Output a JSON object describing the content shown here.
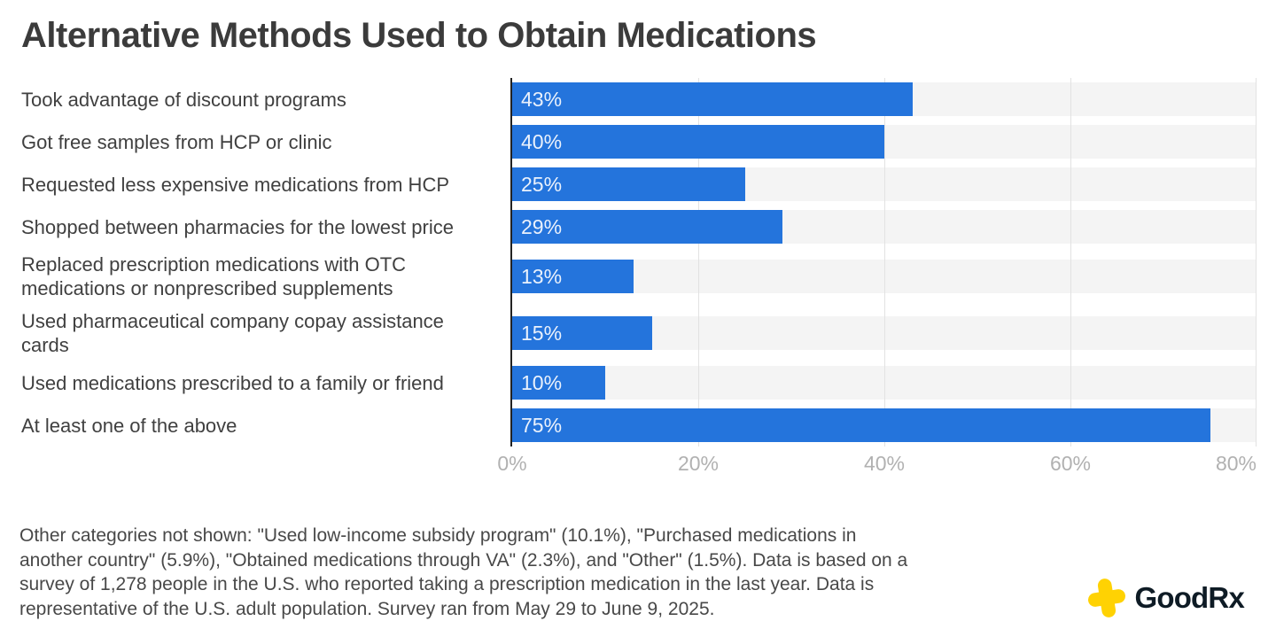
{
  "title": "Alternative Methods Used to Obtain Medications",
  "chart_data": {
    "type": "bar",
    "orientation": "horizontal",
    "title": "Alternative Methods Used to Obtain Medications",
    "xlabel": "",
    "ylabel": "",
    "xlim": [
      0,
      80
    ],
    "xmax": 80,
    "grid": "vertical",
    "x_ticks": [
      "0%",
      "20%",
      "40%",
      "60%",
      "80%"
    ],
    "bar_color": "#2474dc",
    "track_color": "#f4f4f4",
    "rows": [
      {
        "label": "Took advantage of discount programs",
        "value": 43,
        "display": "43%"
      },
      {
        "label": "Got free samples from HCP or clinic",
        "value": 40,
        "display": "40%"
      },
      {
        "label": "Requested less expensive medications from HCP",
        "value": 25,
        "display": "25%"
      },
      {
        "label": "Shopped between pharmacies for the lowest price",
        "value": 29,
        "display": "29%"
      },
      {
        "label": "Replaced prescription medications with OTC\nmedications or nonprescribed supplements",
        "value": 13,
        "display": "13%"
      },
      {
        "label": "Used pharmaceutical company copay assistance\ncards",
        "value": 15,
        "display": "15%"
      },
      {
        "label": "Used medications prescribed to a family or friend",
        "value": 10,
        "display": "10%"
      },
      {
        "label": "At least one of the above",
        "value": 75,
        "display": "75%"
      }
    ]
  },
  "footnote": {
    "text": "Other categories not shown: \"Used low-income subsidy program\" (10.1%), \"Purchased medications in\nanother country\" (5.9%), \"Obtained medications through VA\" (2.3%), and \"Other\" (1.5%). Data is based on a\nsurvey of 1,278 people in the U.S. who reported taking a prescription medication in the last year. Data is\nrepresentative of the U.S. adult population. Survey ran from May 29 to June 9, 2025."
  },
  "logo": {
    "text": "GoodRx",
    "icon": "goodrx-cross-icon",
    "icon_color": "#ffd203",
    "text_color": "#0e1b25"
  }
}
